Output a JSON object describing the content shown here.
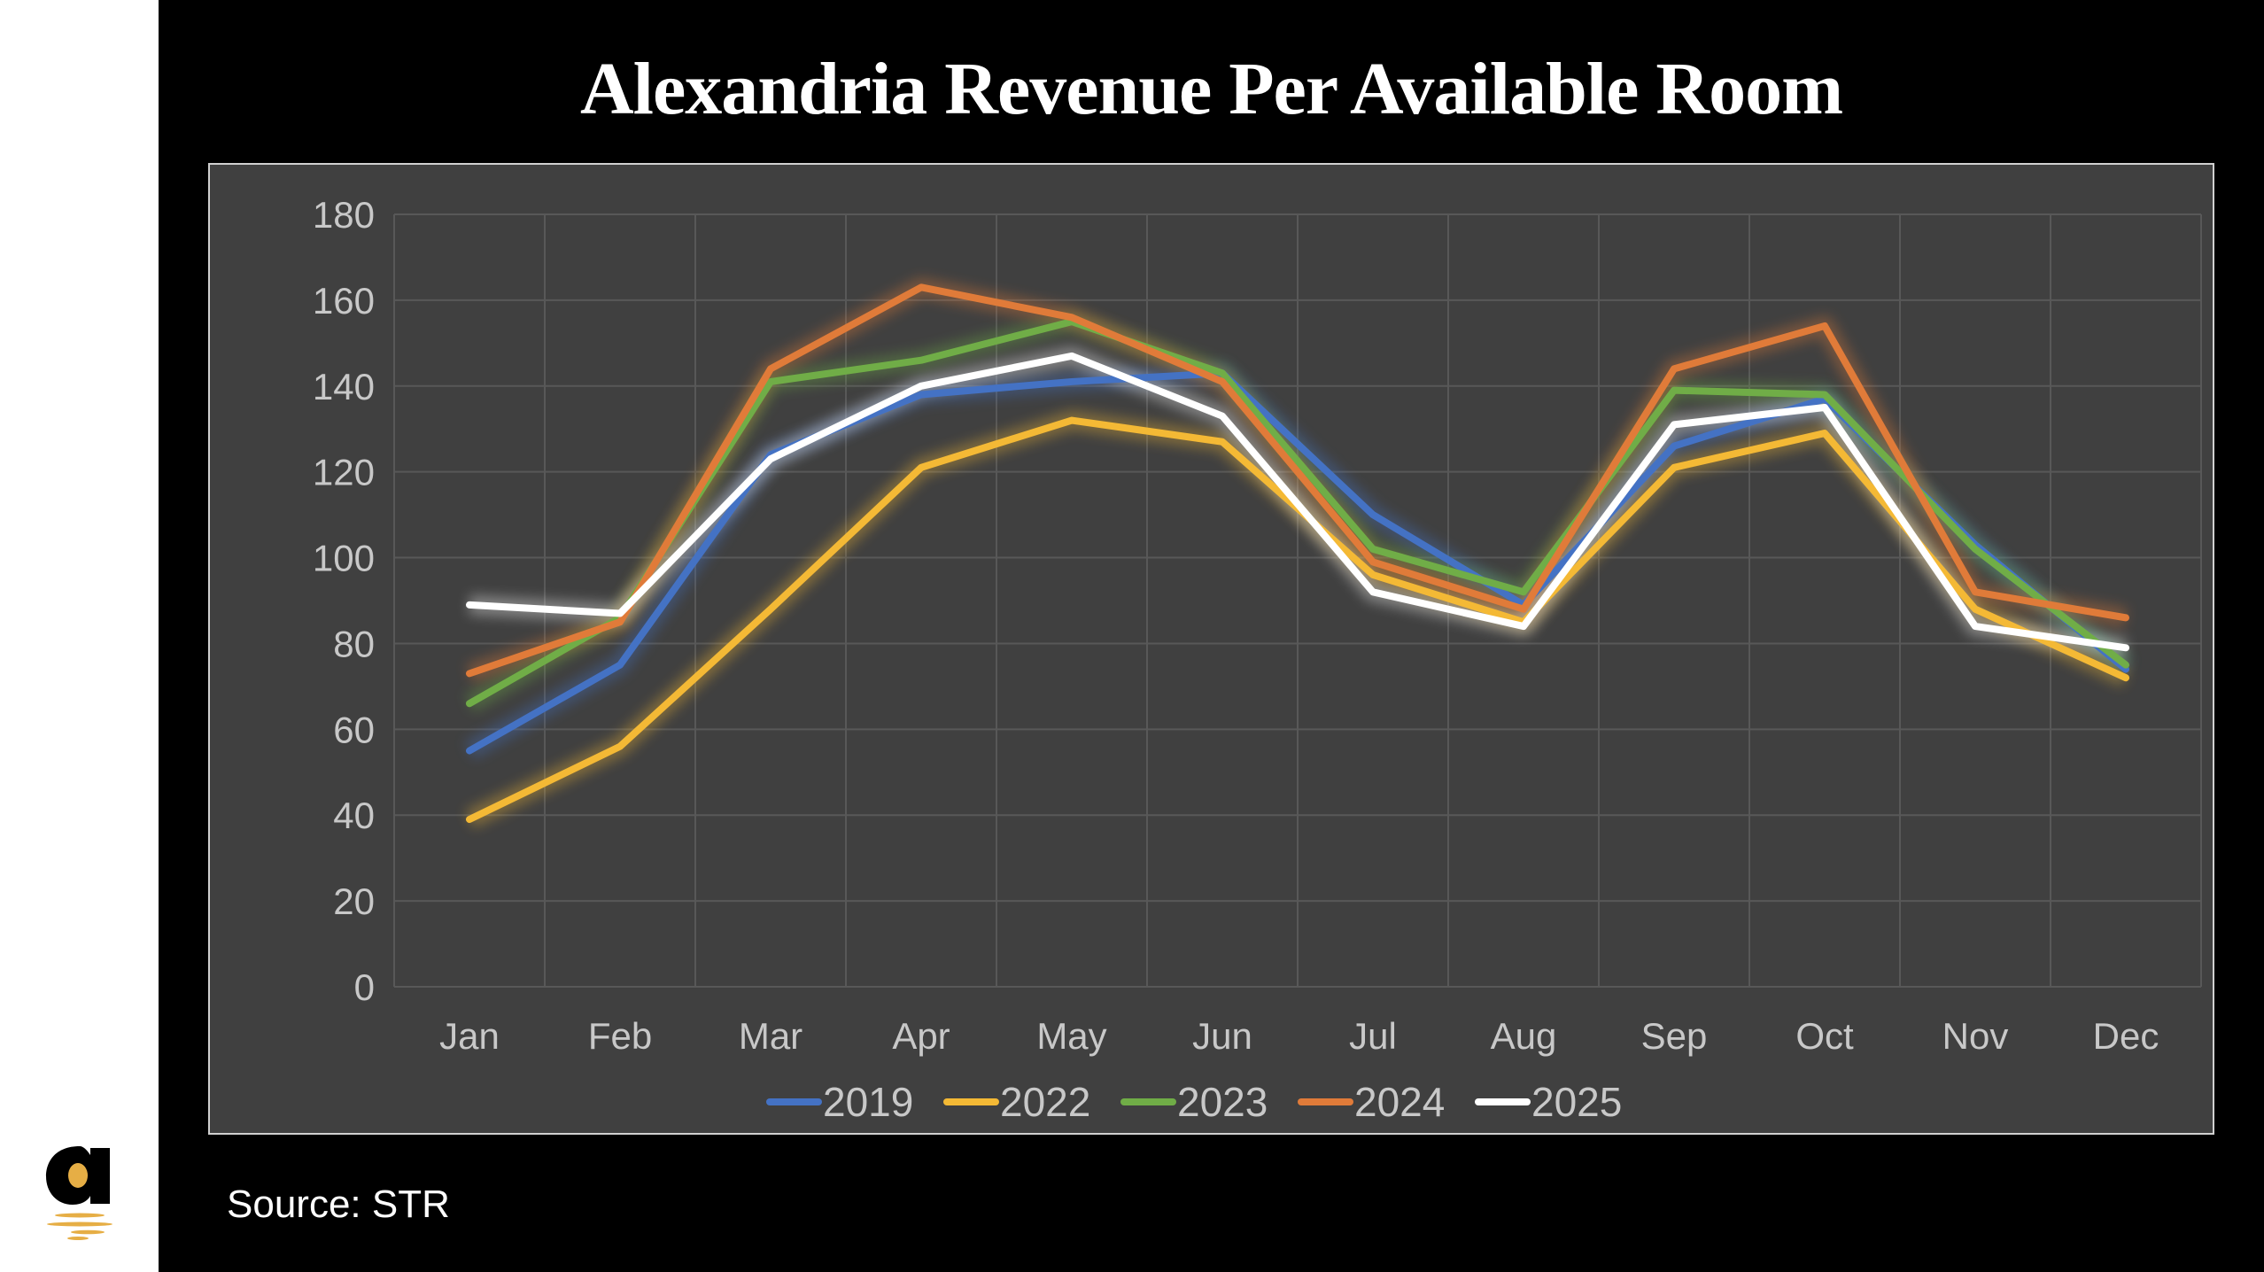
{
  "title": "Alexandria Revenue Per Available Room",
  "source": "Source: STR",
  "logo": {
    "letter": "a",
    "color": "#E6AE45"
  },
  "chart_data": {
    "type": "line",
    "title": "Alexandria Revenue Per Available Room",
    "categories": [
      "Jan",
      "Feb",
      "Mar",
      "Apr",
      "May",
      "Jun",
      "Jul",
      "Aug",
      "Sep",
      "Oct",
      "Nov",
      "Dec"
    ],
    "ylim": [
      0,
      180
    ],
    "yticks": [
      "0",
      "20",
      "40",
      "60",
      "80",
      "100",
      "120",
      "140",
      "160",
      "180"
    ],
    "grid": true,
    "legend": "bottom",
    "series": [
      {
        "name": "2019",
        "color": "#4472C4",
        "values": [
          55,
          75,
          124,
          138,
          141,
          143,
          110,
          89,
          126,
          137,
          103,
          74
        ]
      },
      {
        "name": "2022",
        "color": "#F4B935",
        "values": [
          39,
          56,
          88,
          121,
          132,
          127,
          96,
          85,
          121,
          129,
          88,
          72
        ]
      },
      {
        "name": "2023",
        "color": "#70AD47",
        "values": [
          66,
          86,
          141,
          146,
          155,
          143,
          102,
          92,
          139,
          138,
          102,
          75
        ]
      },
      {
        "name": "2024",
        "color": "#E07B39",
        "values": [
          73,
          85,
          144,
          163,
          156,
          141,
          99,
          88,
          144,
          154,
          92,
          86
        ]
      },
      {
        "name": "2025",
        "color": "#FFFFFF",
        "values": [
          89,
          87,
          123,
          140,
          147,
          133,
          92,
          84,
          131,
          135,
          84,
          79
        ]
      }
    ]
  }
}
